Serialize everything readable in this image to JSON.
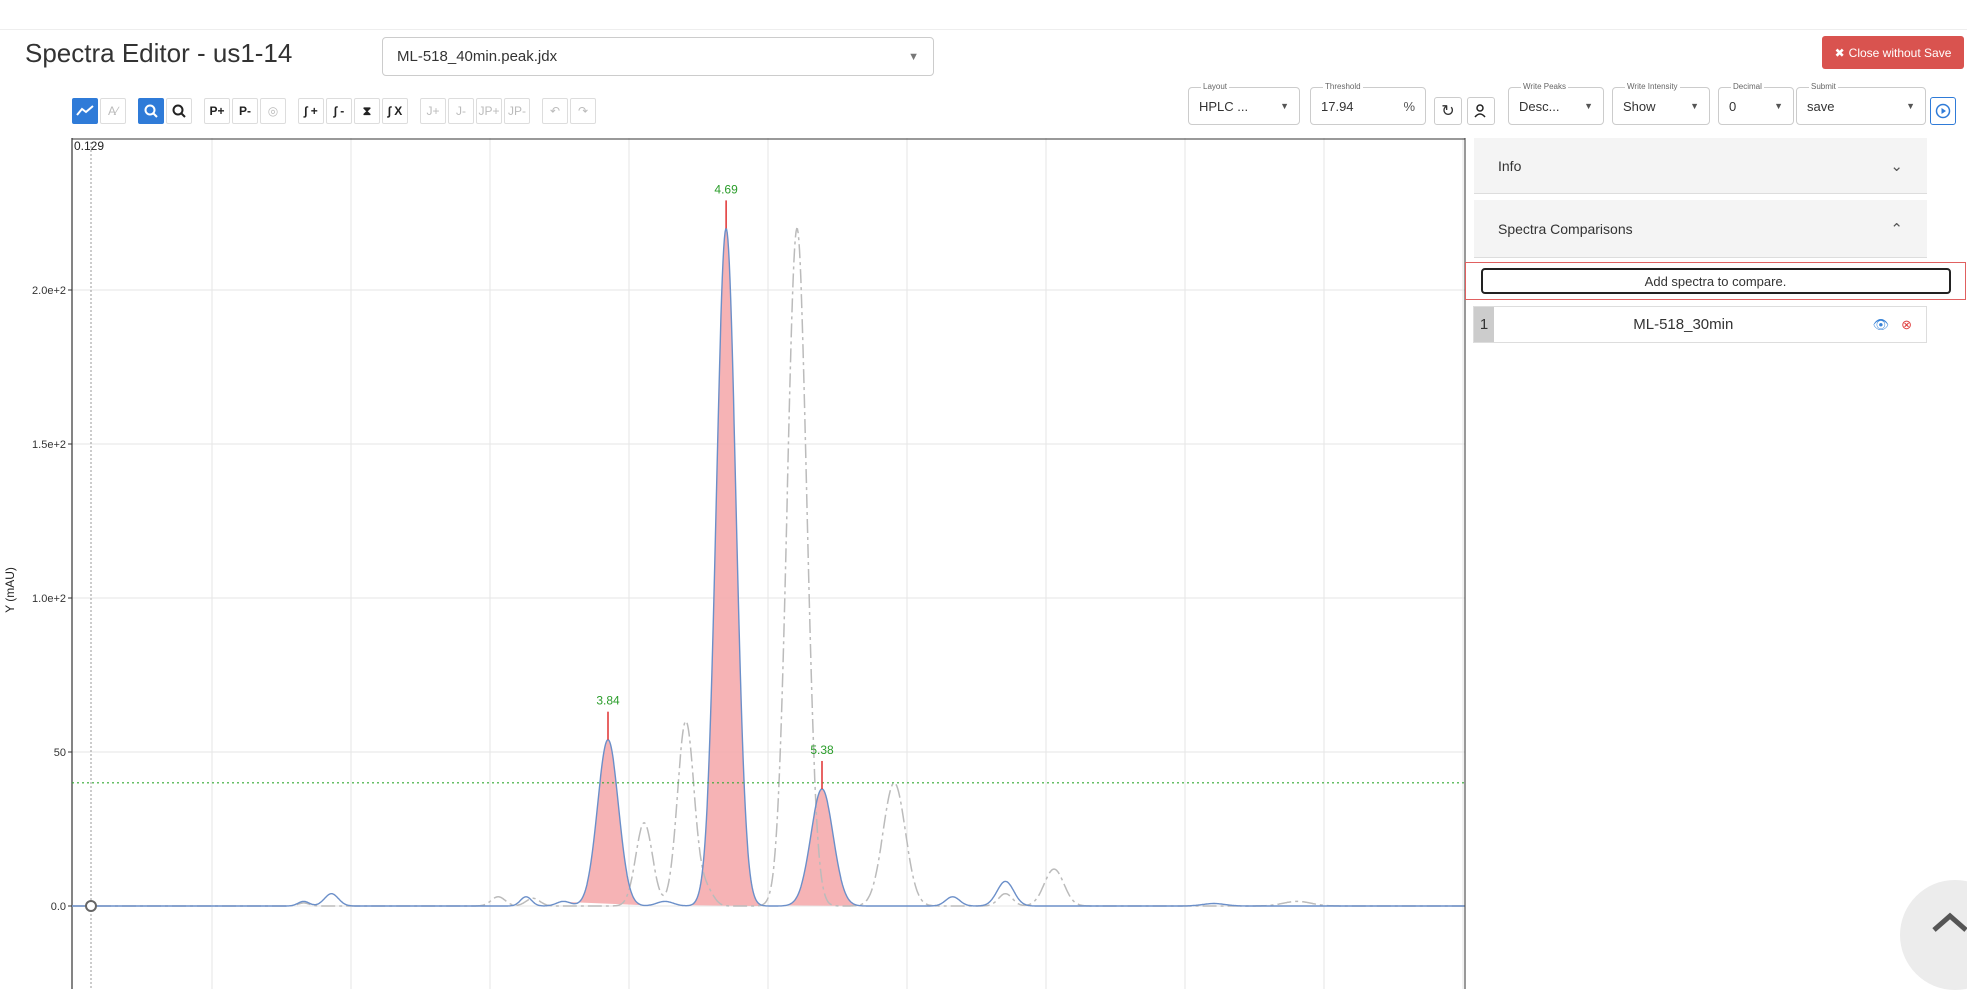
{
  "header": {
    "title": "Spectra Editor - us1-14",
    "file_select": "ML-518_40min.peak.jdx",
    "close_label": "Close without Save"
  },
  "toolbar": {
    "peak_add": "P+",
    "peak_remove": "P-",
    "int_add": "∫ +",
    "int_remove": "∫ -",
    "int_x": "∫ X",
    "j_add": "J+",
    "j_remove": "J-",
    "jp_add": "JP+",
    "jp_remove": "JP-"
  },
  "fields": {
    "layout": {
      "label": "Layout",
      "value": "HPLC ..."
    },
    "threshold": {
      "label": "Threshold",
      "value": "17.94",
      "unit": "%"
    },
    "write_peaks": {
      "label": "Write Peaks",
      "value": "Desc..."
    },
    "write_intensity": {
      "label": "Write Intensity",
      "value": "Show"
    },
    "decimal": {
      "label": "Decimal",
      "value": "0"
    },
    "submit": {
      "label": "Submit",
      "value": "save"
    }
  },
  "panel": {
    "info_label": "Info",
    "comparisons_label": "Spectra Comparisons",
    "add_placeholder": "Add spectra to compare.",
    "comparisons": [
      {
        "index": "1",
        "name": "ML-518_30min"
      }
    ]
  },
  "chart_data": {
    "type": "line",
    "ylabel": "Y (mAU)",
    "top_value_label": "0.129",
    "y_ticks": [
      "0.0",
      "50",
      "1.0e+2",
      "1.5e+2",
      "2.0e+2"
    ],
    "ylim": [
      -25,
      245
    ],
    "threshold_y": 40,
    "peak_labels": [
      {
        "label": "3.84",
        "x": 3.84,
        "y": 54
      },
      {
        "label": "4.69",
        "x": 4.69,
        "y": 220
      },
      {
        "label": "5.38",
        "x": 5.38,
        "y": 38
      }
    ],
    "colors": {
      "main": "#6b8fc9",
      "compare": "#bbbbbb",
      "integration": "#f4a6a8",
      "peak_marker": "#e03030",
      "threshold": "#33aa33",
      "peak_label": "#2a9d2a"
    }
  }
}
